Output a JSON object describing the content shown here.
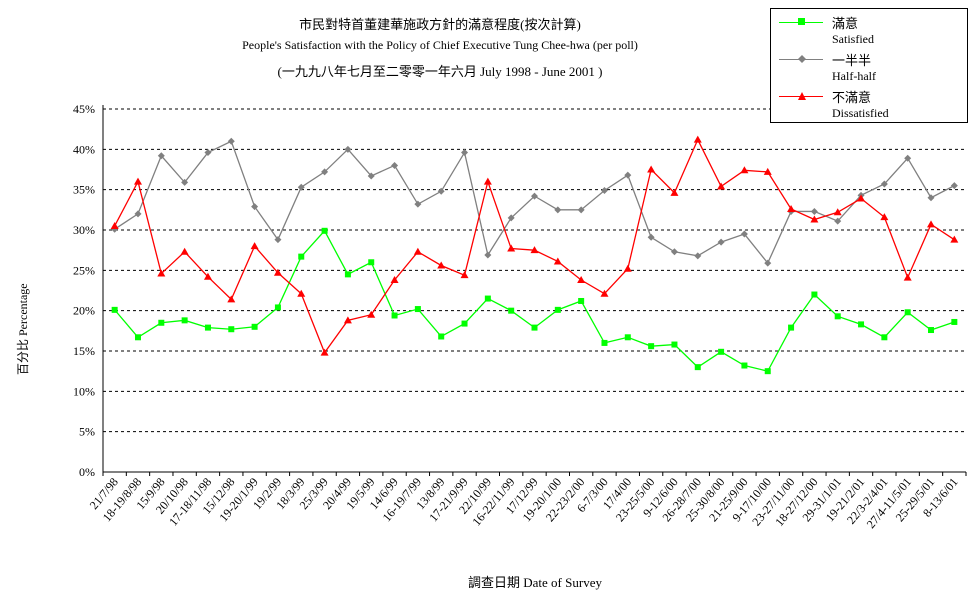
{
  "chart_data": {
    "type": "line",
    "title": "市民對特首董建華施政方針的滿意程度(按次計算)",
    "subtitle": "People's Satisfaction with the Policy of Chief Executive Tung Chee-hwa (per poll)",
    "period": "(一九九八年七月至二零零一年六月 July 1998 - June 2001 )",
    "xlabel": "調查日期 Date of Survey",
    "ylabel": "百分比 Percentage",
    "ylim": [
      0,
      45
    ],
    "yticks": [
      "0%",
      "5%",
      "10%",
      "15%",
      "20%",
      "25%",
      "30%",
      "35%",
      "40%",
      "45%"
    ],
    "grid": true,
    "legend_position": "top-right",
    "categories": [
      "21/7/98",
      "18-19/8/98",
      "15/9/98",
      "20/10/98",
      "17-18/11/98",
      "15/12/98",
      "19-20/1/99",
      "19/2/99",
      "18/3/99",
      "25/3/99",
      "20/4/99",
      "19/5/99",
      "14/6/99",
      "16-19/7/99",
      "13/8/99",
      "17-21/9/99",
      "22/10/99",
      "16-22/11/99",
      "17/12/99",
      "19-20/1/00",
      "22-23/2/00",
      "6-7/3/00",
      "17/4/00",
      "23-25/5/00",
      "9-12/6/00",
      "26-28/7/00",
      "25-30/8/00",
      "21-25/9/00",
      "9-17/10/00",
      "23-27/11/00",
      "18-27/12/00",
      "29-31/1/01",
      "19-21/2/01",
      "22/3-2/4/01",
      "27/4-11/5/01",
      "25-29/5/01",
      "8-13/6/01"
    ],
    "series": [
      {
        "name": "滿意",
        "name_en": "Satisfied",
        "color": "#00ff00",
        "marker": "square",
        "values": [
          20.1,
          16.7,
          18.5,
          18.8,
          17.9,
          17.7,
          18.0,
          20.4,
          26.7,
          29.9,
          24.5,
          26.0,
          19.4,
          20.2,
          16.8,
          18.4,
          21.5,
          20.0,
          17.9,
          20.1,
          21.2,
          16.0,
          16.7,
          15.6,
          15.8,
          13.0,
          14.9,
          13.2,
          12.5,
          17.9,
          22.0,
          19.3,
          18.3,
          16.7,
          19.8,
          17.6,
          18.6
        ]
      },
      {
        "name": "一半半",
        "name_en": "Half-half",
        "color": "#808080",
        "marker": "diamond",
        "values": [
          30.1,
          32.0,
          39.2,
          35.9,
          39.6,
          41.0,
          32.9,
          28.8,
          35.3,
          37.2,
          40.0,
          36.7,
          38.0,
          33.2,
          34.8,
          39.6,
          26.9,
          31.5,
          34.2,
          32.5,
          32.5,
          34.9,
          36.8,
          29.1,
          27.3,
          26.8,
          28.5,
          29.5,
          25.9,
          32.3,
          32.3,
          31.1,
          34.3,
          35.7,
          38.9,
          34.0,
          35.5
        ]
      },
      {
        "name": "不滿意",
        "name_en": "Dissatisfied",
        "color": "#ff0000",
        "marker": "triangle",
        "values": [
          30.5,
          36.0,
          24.6,
          27.3,
          24.2,
          21.4,
          28.0,
          24.7,
          22.1,
          14.8,
          18.8,
          19.5,
          23.8,
          27.3,
          25.6,
          24.4,
          36.0,
          27.7,
          27.5,
          26.1,
          23.8,
          22.1,
          25.2,
          37.5,
          34.6,
          41.2,
          35.4,
          37.4,
          37.2,
          32.6,
          31.3,
          32.2,
          33.9,
          31.6,
          24.1,
          30.7,
          28.8
        ]
      }
    ]
  }
}
